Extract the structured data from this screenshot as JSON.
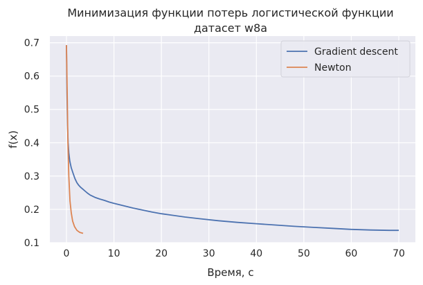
{
  "chart_data": {
    "type": "line",
    "title": "Минимизация функции потерь логистической функции",
    "subtitle": "датасет w8a",
    "xlabel": "Время, с",
    "ylabel": "f(x)",
    "xlim": [
      -3.5,
      73.5
    ],
    "ylim": [
      0.1,
      0.72
    ],
    "xticks": [
      0,
      10,
      20,
      30,
      40,
      50,
      60,
      70
    ],
    "yticks": [
      0.1,
      0.2,
      0.3,
      0.4,
      0.5,
      0.6,
      0.7
    ],
    "grid": true,
    "legend_position": "top-right",
    "series": [
      {
        "name": "Gradient descent",
        "color": "#4c72b0",
        "x": [
          0,
          0.1,
          0.2,
          0.35,
          0.5,
          0.7,
          1.0,
          1.4,
          1.8,
          2.2,
          2.6,
          3.0,
          3.5,
          4.0,
          4.5,
          5.0,
          6.0,
          7.0,
          8.0,
          9.0,
          10.0,
          12.0,
          14.0,
          16.0,
          18.0,
          20.0,
          22.0,
          25.0,
          28.0,
          32.0,
          36.0,
          40.0,
          44.0,
          48.0,
          52.0,
          56.0,
          60.0,
          64.0,
          68.0,
          70.0
        ],
        "y": [
          0.693,
          0.55,
          0.46,
          0.4,
          0.37,
          0.345,
          0.325,
          0.308,
          0.292,
          0.28,
          0.272,
          0.266,
          0.26,
          0.254,
          0.248,
          0.243,
          0.236,
          0.231,
          0.227,
          0.222,
          0.218,
          0.211,
          0.204,
          0.198,
          0.192,
          0.187,
          0.183,
          0.177,
          0.172,
          0.166,
          0.161,
          0.157,
          0.153,
          0.149,
          0.146,
          0.143,
          0.14,
          0.138,
          0.137,
          0.137
        ]
      },
      {
        "name": "Newton",
        "color": "#dd8452",
        "x": [
          0,
          0.15,
          0.3,
          0.5,
          0.75,
          1.0,
          1.3,
          1.7,
          2.2,
          2.8,
          3.5
        ],
        "y": [
          0.693,
          0.56,
          0.4,
          0.3,
          0.225,
          0.19,
          0.165,
          0.148,
          0.137,
          0.131,
          0.128
        ]
      }
    ]
  }
}
